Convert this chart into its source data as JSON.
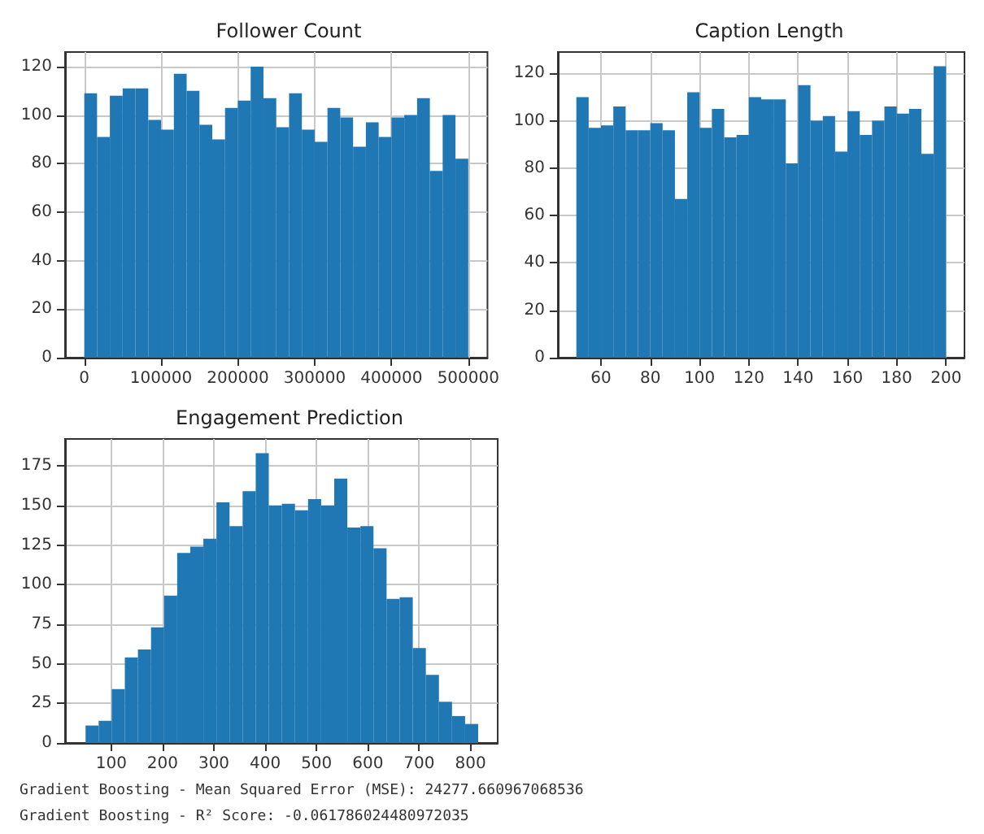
{
  "chart_data": [
    {
      "type": "histogram",
      "title": "Follower Count",
      "color": "#1f77b4",
      "grid": true,
      "bins": [
        0,
        16667,
        33333,
        50000,
        66667,
        83333,
        100000,
        116667,
        133333,
        150000,
        166667,
        183333,
        200000,
        216667,
        233333,
        250000,
        266667,
        283333,
        300000,
        316667,
        333333,
        350000,
        366667,
        383333,
        400000,
        416667,
        433333,
        450000,
        466667,
        483333,
        500000
      ],
      "values": [
        109,
        91,
        108,
        111,
        111,
        98,
        94,
        117,
        110,
        96,
        90,
        103,
        106,
        120,
        107,
        95,
        109,
        94,
        89,
        103,
        99,
        87,
        97,
        91,
        99,
        100,
        107,
        77,
        100,
        82
      ],
      "xlim": [
        -25000,
        525000
      ],
      "xticks": [
        0,
        100000,
        200000,
        300000,
        400000,
        500000
      ],
      "ylim": [
        0,
        126
      ],
      "yticks": [
        0,
        20,
        40,
        60,
        80,
        100,
        120
      ]
    },
    {
      "type": "histogram",
      "title": "Caption Length",
      "color": "#1f77b4",
      "grid": true,
      "bins": [
        50,
        55,
        60,
        65,
        70,
        75,
        80,
        85,
        90,
        95,
        100,
        105,
        110,
        115,
        120,
        125,
        130,
        135,
        140,
        145,
        150,
        155,
        160,
        165,
        170,
        175,
        180,
        185,
        190,
        195,
        200
      ],
      "values": [
        110,
        97,
        98,
        106,
        96,
        96,
        99,
        96,
        67,
        112,
        97,
        105,
        93,
        94,
        110,
        109,
        109,
        82,
        115,
        100,
        102,
        87,
        104,
        94,
        100,
        106,
        103,
        105,
        86,
        123
      ],
      "xlim": [
        42.5,
        207.5
      ],
      "xticks": [
        60,
        80,
        100,
        120,
        140,
        160,
        180,
        200
      ],
      "ylim": [
        0,
        129
      ],
      "yticks": [
        0,
        20,
        40,
        60,
        80,
        100,
        120
      ]
    },
    {
      "type": "histogram",
      "title": "Engagement Prediction",
      "color": "#1f77b4",
      "grid": true,
      "bins": [
        50,
        75.5,
        101,
        126.5,
        152,
        177.5,
        203,
        228.5,
        254,
        279.5,
        305,
        330.5,
        356,
        381.5,
        407,
        432.5,
        458,
        483.5,
        509,
        534.5,
        560,
        585.5,
        611,
        636.5,
        662,
        687.5,
        713,
        738.5,
        764,
        789.5,
        815
      ],
      "values": [
        11,
        14,
        34,
        54,
        59,
        73,
        93,
        120,
        124,
        129,
        152,
        137,
        159,
        183,
        150,
        151,
        147,
        154,
        150,
        167,
        136,
        137,
        123,
        91,
        92,
        60,
        43,
        26,
        17,
        12
      ],
      "xlim": [
        10,
        853
      ],
      "xticks": [
        100,
        200,
        300,
        400,
        500,
        600,
        700,
        800
      ],
      "ylim": [
        0,
        192
      ],
      "yticks": [
        0,
        25,
        50,
        75,
        100,
        125,
        150,
        175
      ],
      "annotations": [
        "Gradient Boosting - Mean Squared Error (MSE): 24277.660967068536",
        "Gradient Boosting - R² Score: -0.061786024480972035"
      ]
    }
  ]
}
